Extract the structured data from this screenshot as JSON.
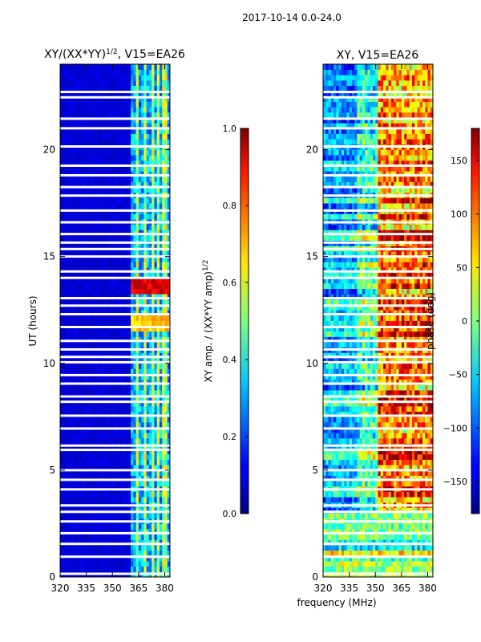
{
  "figure": {
    "suptitle": "2017-10-14 0.0-24.0",
    "xlabel": "frequency (MHz)"
  },
  "chart_data": [
    {
      "type": "heatmap",
      "title": "XY/(XX*YY)",
      "title_exponent": "1/2",
      "title_suffix": ", V15=EA26",
      "xlabel": "",
      "ylabel": "UT (hours)",
      "xlim": [
        320,
        383
      ],
      "ylim": [
        0,
        24
      ],
      "xticks": [
        "320",
        "335",
        "350",
        "365",
        "380"
      ],
      "yticks": [
        "0",
        "5",
        "10",
        "15",
        "20"
      ],
      "colorbar": {
        "label": "XY amp. / (XX*YY amp)",
        "label_exponent": "1/2",
        "range": [
          0.0,
          1.0
        ],
        "ticks": [
          "0.0",
          "0.2",
          "0.4",
          "0.6",
          "0.8",
          "1.0"
        ]
      },
      "bright_channels_mhz": [
        364,
        369,
        373,
        376,
        380
      ],
      "high_amplitude_times_ut": [
        11.9,
        13.7
      ]
    },
    {
      "type": "heatmap",
      "title": "XY, V15=EA26",
      "xlabel": "",
      "ylabel": "",
      "xlim": [
        320,
        383
      ],
      "ylim": [
        0,
        24
      ],
      "xticks": [
        "320",
        "335",
        "350",
        "365",
        "380"
      ],
      "yticks": [
        "0",
        "5",
        "10",
        "15",
        "20"
      ],
      "colorbar": {
        "label": "phase (deg)",
        "range": [
          -180,
          180
        ],
        "ticks": [
          "−150",
          "−100",
          "−50",
          "0",
          "50",
          "100",
          "150"
        ]
      }
    }
  ],
  "gaps_ut": [
    0.15,
    0.95,
    1.55,
    2.05,
    2.6,
    3.05,
    3.35,
    4.1,
    4.55,
    5.0,
    5.95,
    6.15,
    6.95,
    7.55,
    8.2,
    8.45,
    9.05,
    9.45,
    10.05,
    10.3,
    10.65,
    11.05,
    11.7,
    12.3,
    12.7,
    13.05,
    14.0,
    14.3,
    15.0,
    15.35,
    15.65,
    16.05,
    16.6,
    17.15,
    17.85,
    18.25,
    18.8,
    19.25,
    20.15,
    21.0,
    21.45,
    22.45,
    22.7
  ]
}
